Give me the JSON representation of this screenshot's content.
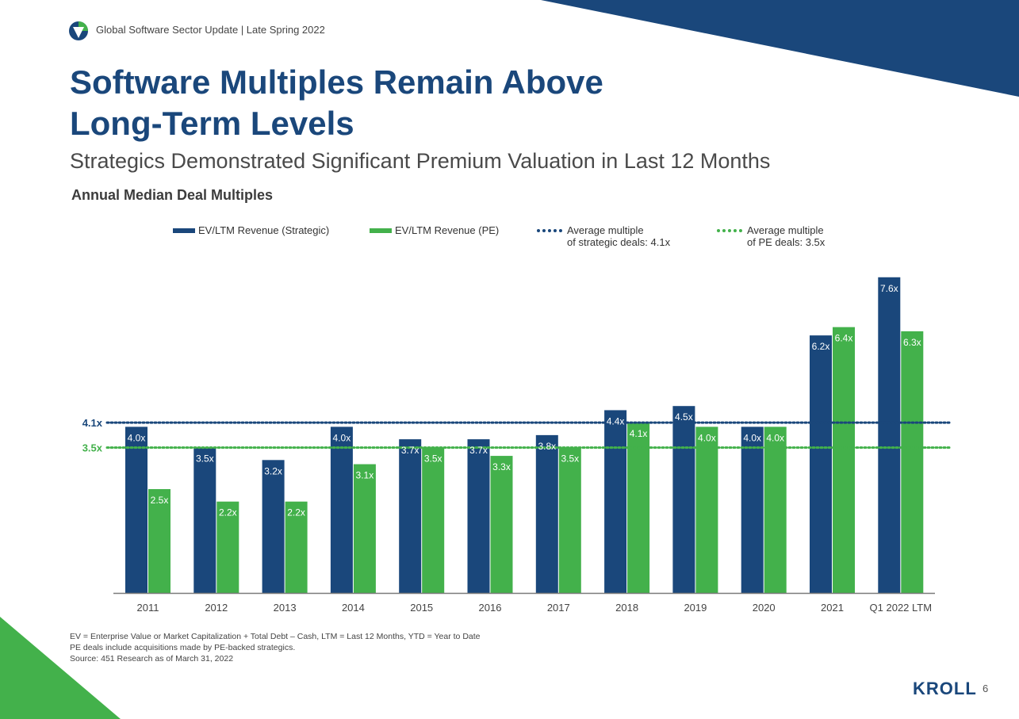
{
  "header": {
    "text": "Global Software Sector Update | Late Spring 2022"
  },
  "title": {
    "line1": "Software Multiples Remain Above",
    "line2": "Long-Term Levels"
  },
  "subtitle": "Strategics Demonstrated Significant Premium Valuation in Last 12 Months",
  "colors": {
    "strategic": "#1a477b",
    "pe": "#43b14b",
    "accent_navy": "#1a477b",
    "accent_green": "#43b14b"
  },
  "legend": {
    "strategic": "EV/LTM Revenue (Strategic)",
    "pe": "EV/LTM Revenue (PE)",
    "avg_strategic_l1": "Average multiple",
    "avg_strategic_l2": "of strategic deals: 4.1x",
    "avg_pe_l1": "Average multiple",
    "avg_pe_l2": "of PE deals: 3.5x"
  },
  "chart_data": {
    "type": "bar",
    "title": "Annual Median Deal Multiples",
    "categories": [
      "2011",
      "2012",
      "2013",
      "2014",
      "2015",
      "2016",
      "2017",
      "2018",
      "2019",
      "2020",
      "2021",
      "Q1 2022 LTM"
    ],
    "series": [
      {
        "name": "EV/LTM Revenue (Strategic)",
        "values": [
          4.0,
          3.5,
          3.2,
          4.0,
          3.7,
          3.7,
          3.8,
          4.4,
          4.5,
          4.0,
          6.2,
          7.6
        ],
        "labels": [
          "4.0x",
          "3.5x",
          "3.2x",
          "4.0x",
          "3.7x",
          "3.7x",
          "3.8x",
          "4.4x",
          "4.5x",
          "4.0x",
          "6.2x",
          "7.6x"
        ]
      },
      {
        "name": "EV/LTM Revenue (PE)",
        "values": [
          2.5,
          2.2,
          2.2,
          3.1,
          3.5,
          3.3,
          3.5,
          4.1,
          4.0,
          4.0,
          6.4,
          6.3
        ],
        "labels": [
          "2.5x",
          "2.2x",
          "2.2x",
          "3.1x",
          "3.5x",
          "3.3x",
          "3.5x",
          "4.1x",
          "4.0x",
          "4.0x",
          "6.4x",
          "6.3x"
        ]
      }
    ],
    "reference_lines": [
      {
        "name": "Average multiple of strategic deals",
        "value": 4.1,
        "label": "4.1x"
      },
      {
        "name": "Average multiple of PE deals",
        "value": 3.5,
        "label": "3.5x"
      }
    ],
    "xlabel": "",
    "ylabel": "",
    "ylim": [
      0,
      7.6
    ],
    "grid": false,
    "legend_position": "top"
  },
  "footnotes": [
    "EV = Enterprise Value or Market Capitalization + Total Debt – Cash, LTM = Last 12 Months, YTD = Year to Date",
    "PE deals include acquisitions made by PE-backed strategics.",
    "Source: 451 Research as of March 31, 2022"
  ],
  "footer": {
    "brand": "KROLL",
    "page_number": "6"
  }
}
